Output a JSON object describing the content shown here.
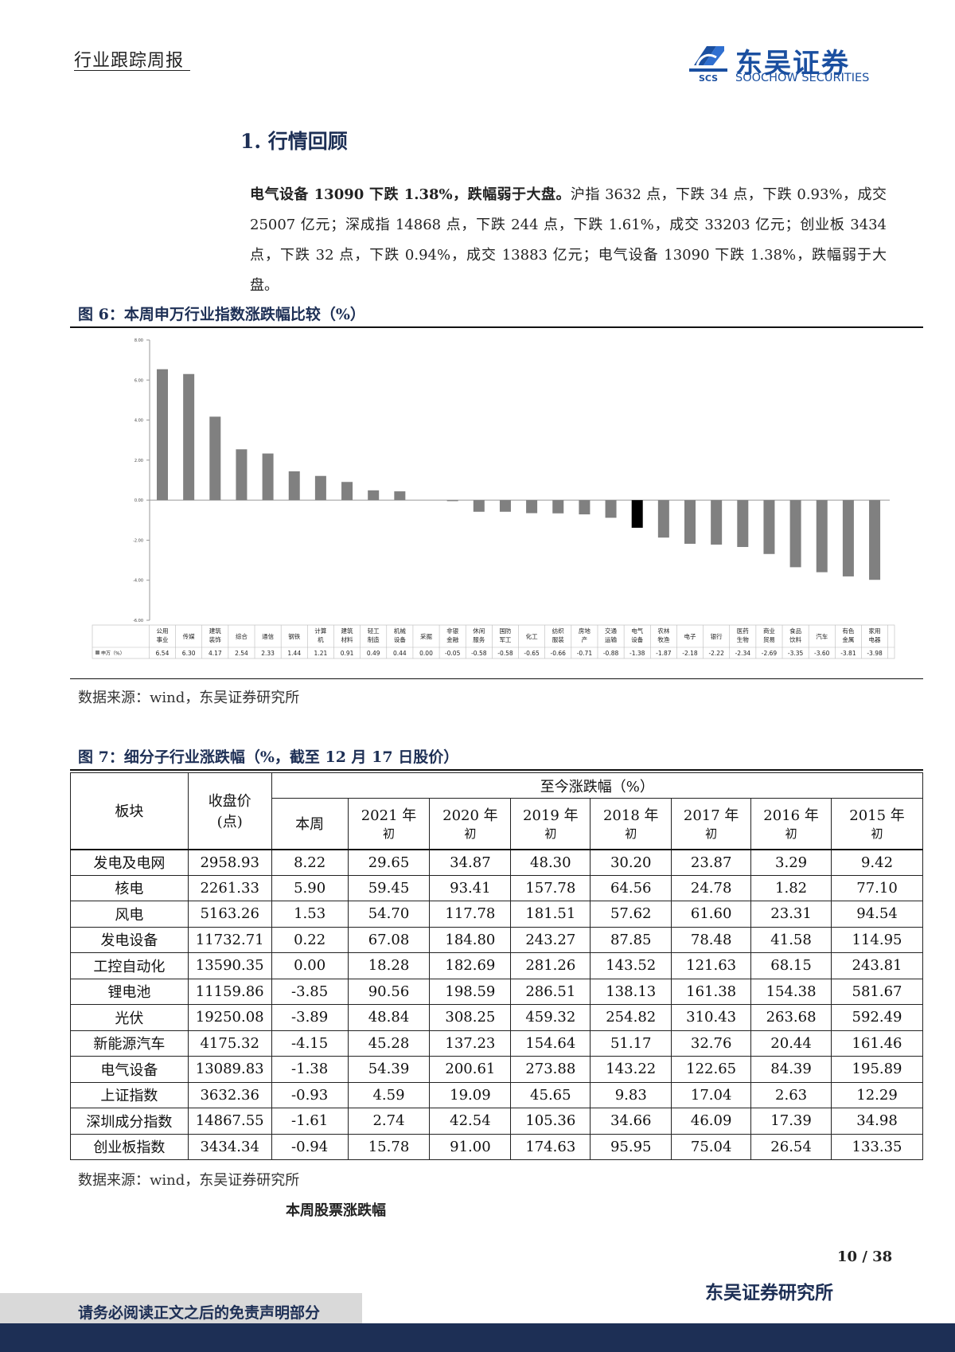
{
  "header": {
    "report_type": "行业跟踪周报",
    "logo_cn": "东吴证券",
    "logo_en": "SOOCHOW SECURITIES",
    "logo_mark": "SCS"
  },
  "section": {
    "title": "1.  行情回顾"
  },
  "summary": {
    "lead": "电气设备 13090 下跌 1.38%，跌幅弱于大盘。",
    "body": "沪指 3632 点，下跌 34 点，下跌 0.93%，成交 25007 亿元；深成指 14868 点，下跌 244 点，下跌 1.61%，成交 33203 亿元；创业板 3434 点，下跌 32 点，下跌 0.94%，成交 13883 亿元；电气设备 13090 下跌 1.38%，跌幅弱于大盘。"
  },
  "figure6": {
    "caption": "图 6：本周申万行业指数涨跌幅比较（%）",
    "source": "数据来源：wind，东吴证券研究所"
  },
  "chart_data": {
    "type": "bar",
    "title": "",
    "series_label": "申万（%）",
    "ylim": [
      -6,
      8
    ],
    "yticks": [
      "8.00",
      "6.00",
      "4.00",
      "2.00",
      "0.00",
      "-2.00",
      "-4.00",
      "-6.00"
    ],
    "highlight_index": 20,
    "colors": {
      "bar": "#808080",
      "highlight": "#000000"
    },
    "categories": [
      [
        "公用",
        "事业"
      ],
      [
        "传媒"
      ],
      [
        "建筑",
        "装饰"
      ],
      [
        "综合"
      ],
      [
        "通信"
      ],
      [
        "钢铁"
      ],
      [
        "计算",
        "机"
      ],
      [
        "建筑",
        "材料"
      ],
      [
        "轻工",
        "制造"
      ],
      [
        "机械",
        "设备"
      ],
      [
        "采掘"
      ],
      [
        "非银",
        "金融"
      ],
      [
        "休闲",
        "服务"
      ],
      [
        "国防",
        "军工"
      ],
      [
        "化工"
      ],
      [
        "纺织",
        "服装"
      ],
      [
        "房地",
        "产"
      ],
      [
        "交通",
        "运输"
      ],
      [
        "电气",
        "设备"
      ],
      [
        "农林",
        "牧渔"
      ],
      [
        "电子"
      ],
      [
        "银行"
      ],
      [
        "医药",
        "生物"
      ],
      [
        "商业",
        "贸易"
      ],
      [
        "食品",
        "饮料"
      ],
      [
        "汽车"
      ],
      [
        "有色",
        "金属"
      ],
      [
        "家用",
        "电器"
      ]
    ],
    "values": [
      6.54,
      6.3,
      4.17,
      2.54,
      2.33,
      1.44,
      1.21,
      0.91,
      0.49,
      0.44,
      0.0,
      -0.05,
      -0.58,
      -0.58,
      -0.65,
      -0.66,
      -0.71,
      -0.88,
      -1.38,
      -1.87,
      -2.18,
      -2.22,
      -2.34,
      -2.69,
      -3.35,
      -3.6,
      -3.81,
      -3.98
    ],
    "value_labels": [
      "6.54",
      "6.30",
      "4.17",
      "2.54",
      "2.33",
      "1.44",
      "1.21",
      "0.91",
      "0.49",
      "0.44",
      "0.00",
      "-0.05",
      "-0.58",
      "-0.58",
      "-0.65",
      "-0.66",
      "-0.71",
      "-0.88",
      "-1.38",
      "-1.87",
      "-2.18",
      "-2.22",
      "-2.34",
      "-2.69",
      "-3.35",
      "-3.60",
      "-3.81",
      "-3.98"
    ]
  },
  "figure7": {
    "caption": "图 7：细分子行业涨跌幅（%，截至 12 月 17 日股价）",
    "source": "数据来源：wind，东吴证券研究所",
    "headers": {
      "sector": "板块",
      "close": "收盘价",
      "close_unit": "(点)",
      "ytd_group": "至今涨跌幅（%）",
      "week": "本周",
      "years": [
        {
          "year": "2021 年",
          "suffix": "初"
        },
        {
          "year": "2020 年",
          "suffix": "初"
        },
        {
          "year": "2019 年",
          "suffix": "初"
        },
        {
          "year": "2018 年",
          "suffix": "初"
        },
        {
          "year": "2017 年",
          "suffix": "初"
        },
        {
          "year": "2016 年",
          "suffix": "初"
        },
        {
          "year": "2015 年",
          "suffix": "初"
        }
      ]
    },
    "rows": [
      [
        "发电及电网",
        "2958.93",
        "8.22",
        "29.65",
        "34.87",
        "48.30",
        "30.20",
        "23.87",
        "3.29",
        "9.42"
      ],
      [
        "核电",
        "2261.33",
        "5.90",
        "59.45",
        "93.41",
        "157.78",
        "64.56",
        "24.78",
        "1.82",
        "77.10"
      ],
      [
        "风电",
        "5163.26",
        "1.53",
        "54.70",
        "117.78",
        "181.51",
        "57.62",
        "61.60",
        "23.31",
        "94.54"
      ],
      [
        "发电设备",
        "11732.71",
        "0.22",
        "67.08",
        "184.80",
        "243.27",
        "87.85",
        "78.48",
        "41.58",
        "114.95"
      ],
      [
        "工控自动化",
        "13590.35",
        "0.00",
        "18.28",
        "182.69",
        "281.26",
        "143.52",
        "121.63",
        "68.15",
        "243.81"
      ],
      [
        "锂电池",
        "11159.86",
        "-3.85",
        "90.56",
        "198.59",
        "286.51",
        "138.13",
        "161.38",
        "154.38",
        "581.67"
      ],
      [
        "光伏",
        "19250.08",
        "-3.89",
        "48.84",
        "308.25",
        "459.32",
        "254.82",
        "310.43",
        "263.68",
        "592.49"
      ],
      [
        "新能源汽车",
        "4175.32",
        "-4.15",
        "45.28",
        "137.23",
        "154.64",
        "51.17",
        "32.76",
        "20.44",
        "161.46"
      ],
      [
        "电气设备",
        "13089.83",
        "-1.38",
        "54.39",
        "200.61",
        "273.88",
        "143.22",
        "122.65",
        "84.39",
        "195.89"
      ],
      [
        "上证指数",
        "3632.36",
        "-0.93",
        "4.59",
        "19.09",
        "45.65",
        "9.83",
        "17.04",
        "2.63",
        "12.29"
      ],
      [
        "深圳成分指数",
        "14867.55",
        "-1.61",
        "2.74",
        "42.54",
        "105.36",
        "34.66",
        "46.09",
        "17.39",
        "34.98"
      ],
      [
        "创业板指数",
        "3434.34",
        "-0.94",
        "15.78",
        "91.00",
        "174.63",
        "95.95",
        "75.04",
        "26.54",
        "133.35"
      ]
    ]
  },
  "subheading": "本周股票涨跌幅",
  "footer": {
    "page": "10 / 38",
    "institution": "东吴证券研究所",
    "disclaimer": "请务必阅读正文之后的免责声明部分"
  }
}
